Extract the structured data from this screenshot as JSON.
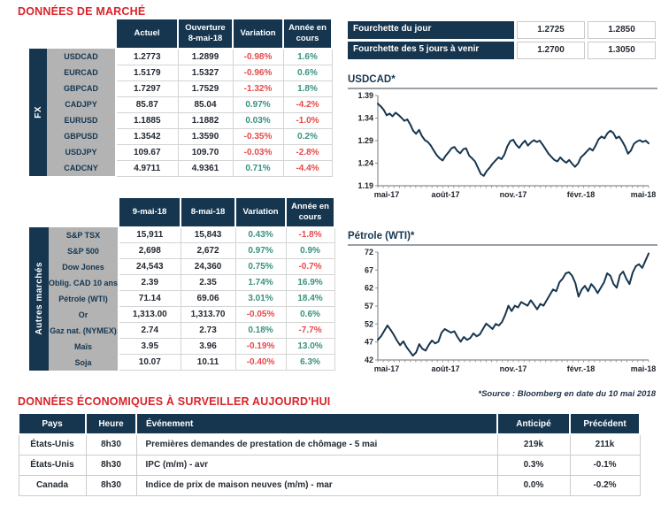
{
  "colors": {
    "navy": "#16364f",
    "title_red": "#d9232a",
    "positive": "#38917f",
    "negative": "#e8484b",
    "label_gray": "#b3b3b3"
  },
  "titles": {
    "market_data": "DONNÉES DE MARCHÉ",
    "economic_data": "DONNÉES ÉCONOMIQUES À SURVEILLER AUJOURD'HUI"
  },
  "fx_table": {
    "side_label": "FX",
    "headers": [
      [
        "Actuel"
      ],
      [
        "Ouverture",
        "8-mai-18"
      ],
      [
        "Variation"
      ],
      [
        "Année en",
        "cours"
      ]
    ],
    "rows": [
      {
        "label": "USDCAD",
        "cells": [
          "1.2773",
          "1.2899",
          "-0.98%",
          "1.6%"
        ]
      },
      {
        "label": "EURCAD",
        "cells": [
          "1.5179",
          "1.5327",
          "-0.96%",
          "0.6%"
        ]
      },
      {
        "label": "GBPCAD",
        "cells": [
          "1.7297",
          "1.7529",
          "-1.32%",
          "1.8%"
        ]
      },
      {
        "label": "CADJPY",
        "cells": [
          "85.87",
          "85.04",
          "0.97%",
          "-4.2%"
        ]
      },
      {
        "label": "EURUSD",
        "cells": [
          "1.1885",
          "1.1882",
          "0.03%",
          "-1.0%"
        ]
      },
      {
        "label": "GBPUSD",
        "cells": [
          "1.3542",
          "1.3590",
          "-0.35%",
          "0.2%"
        ]
      },
      {
        "label": "USDJPY",
        "cells": [
          "109.67",
          "109.70",
          "-0.03%",
          "-2.8%"
        ]
      },
      {
        "label": "CADCNY",
        "cells": [
          "4.9711",
          "4.9361",
          "0.71%",
          "-4.4%"
        ]
      }
    ]
  },
  "markets_table": {
    "side_label": "Autres marchés",
    "headers": [
      [
        "9-mai-18"
      ],
      [
        "8-mai-18"
      ],
      [
        "Variation"
      ],
      [
        "Année en",
        "cours"
      ]
    ],
    "rows": [
      {
        "label": "S&P TSX",
        "cells": [
          "15,911",
          "15,843",
          "0.43%",
          "-1.8%"
        ]
      },
      {
        "label": "S&P 500",
        "cells": [
          "2,698",
          "2,672",
          "0.97%",
          "0.9%"
        ]
      },
      {
        "label": "Dow Jones",
        "cells": [
          "24,543",
          "24,360",
          "0.75%",
          "-0.7%"
        ]
      },
      {
        "label": "Oblig. CAD 10 ans",
        "cells": [
          "2.39",
          "2.35",
          "1.74%",
          "16.9%"
        ]
      },
      {
        "label": "Pétrole (WTI)",
        "cells": [
          "71.14",
          "69.06",
          "3.01%",
          "18.4%"
        ]
      },
      {
        "label": "Or",
        "cells": [
          "1,313.00",
          "1,313.70",
          "-0.05%",
          "0.6%"
        ]
      },
      {
        "label": "Gaz nat. (NYMEX)",
        "cells": [
          "2.74",
          "2.73",
          "0.18%",
          "-7.7%"
        ]
      },
      {
        "label": "Maïs",
        "cells": [
          "3.95",
          "3.96",
          "-0.19%",
          "13.0%"
        ]
      },
      {
        "label": "Soja",
        "cells": [
          "10.07",
          "10.11",
          "-0.40%",
          "6.3%"
        ]
      }
    ]
  },
  "range_table": {
    "rows": [
      {
        "label": "Fourchette du jour",
        "low": "1.2725",
        "high": "1.2850"
      },
      {
        "label": "Fourchette des 5 jours à venir",
        "low": "1.2700",
        "high": "1.3050"
      }
    ]
  },
  "chart_data": [
    {
      "type": "line",
      "title": "USDCAD*",
      "xlabel": "",
      "ylabel": "",
      "ylim": [
        1.19,
        1.39
      ],
      "ytick_values": [
        1.19,
        1.24,
        1.29,
        1.34,
        1.39
      ],
      "ytick_labels": [
        "1.19",
        "1.24",
        "1.29",
        "1.34",
        "1.39"
      ],
      "x_tick_labels": [
        "mai-17",
        "août-17",
        "nov.-17",
        "févr.-18",
        "mai-18"
      ],
      "line_color": "#16364f",
      "grid": false,
      "values": [
        1.372,
        1.366,
        1.358,
        1.346,
        1.35,
        1.344,
        1.352,
        1.347,
        1.341,
        1.334,
        1.337,
        1.326,
        1.312,
        1.305,
        1.314,
        1.3,
        1.291,
        1.287,
        1.279,
        1.268,
        1.258,
        1.251,
        1.246,
        1.256,
        1.264,
        1.273,
        1.276,
        1.267,
        1.262,
        1.271,
        1.273,
        1.257,
        1.251,
        1.244,
        1.23,
        1.216,
        1.212,
        1.223,
        1.23,
        1.239,
        1.246,
        1.253,
        1.249,
        1.259,
        1.277,
        1.289,
        1.292,
        1.281,
        1.274,
        1.283,
        1.29,
        1.279,
        1.286,
        1.291,
        1.287,
        1.29,
        1.281,
        1.271,
        1.261,
        1.254,
        1.247,
        1.244,
        1.253,
        1.246,
        1.241,
        1.247,
        1.239,
        1.232,
        1.239,
        1.253,
        1.259,
        1.266,
        1.273,
        1.268,
        1.279,
        1.293,
        1.299,
        1.295,
        1.306,
        1.312,
        1.307,
        1.295,
        1.299,
        1.289,
        1.277,
        1.261,
        1.268,
        1.283,
        1.288,
        1.291,
        1.287,
        1.29,
        1.284
      ]
    },
    {
      "type": "line",
      "title": "Pétrole (WTI)*",
      "xlabel": "",
      "ylabel": "",
      "ylim": [
        42,
        72
      ],
      "ytick_values": [
        42,
        47,
        52,
        57,
        62,
        67,
        72
      ],
      "ytick_labels": [
        "42",
        "47",
        "52",
        "57",
        "62",
        "67",
        "72"
      ],
      "x_tick_labels": [
        "mai-17",
        "août-17",
        "nov.-17",
        "févr.-18",
        "mai-18"
      ],
      "line_color": "#16364f",
      "grid": false,
      "values": [
        47.6,
        48.6,
        50.1,
        51.6,
        50.4,
        49.0,
        47.4,
        46.1,
        47.2,
        45.6,
        44.4,
        43.2,
        44.1,
        46.4,
        45.1,
        44.6,
        46.2,
        47.4,
        46.6,
        47.1,
        49.6,
        50.6,
        50.1,
        49.6,
        50.0,
        48.4,
        47.1,
        48.4,
        47.6,
        48.1,
        49.4,
        48.6,
        49.1,
        50.6,
        52.1,
        51.4,
        50.6,
        52.0,
        51.6,
        52.6,
        54.6,
        57.1,
        55.6,
        57.1,
        56.6,
        58.1,
        57.6,
        57.1,
        58.6,
        57.4,
        56.1,
        57.6,
        57.1,
        58.6,
        60.1,
        61.6,
        61.1,
        63.6,
        64.6,
        66.1,
        66.4,
        65.4,
        63.4,
        59.6,
        61.6,
        62.6,
        61.1,
        63.1,
        62.1,
        60.6,
        62.1,
        63.6,
        66.1,
        65.4,
        63.1,
        62.1,
        65.6,
        66.6,
        64.6,
        63.1,
        66.3,
        68.1,
        68.6,
        67.6,
        69.6,
        71.6
      ]
    }
  ],
  "source_note": "*Source : Bloomberg en date du  10 mai 2018",
  "econ_table": {
    "headers": [
      "Pays",
      "Heure",
      "Événement",
      "Anticipé",
      "Précédent"
    ],
    "rows": [
      [
        "États-Unis",
        "8h30",
        "Premières demandes de prestation de chômage - 5 mai",
        "219k",
        "211k"
      ],
      [
        "États-Unis",
        "8h30",
        "IPC (m/m) - avr",
        "0.3%",
        "-0.1%"
      ],
      [
        "Canada",
        "8h30",
        "Indice de prix de maison neuves (m/m) - mar",
        "0.0%",
        "-0.2%"
      ]
    ]
  }
}
